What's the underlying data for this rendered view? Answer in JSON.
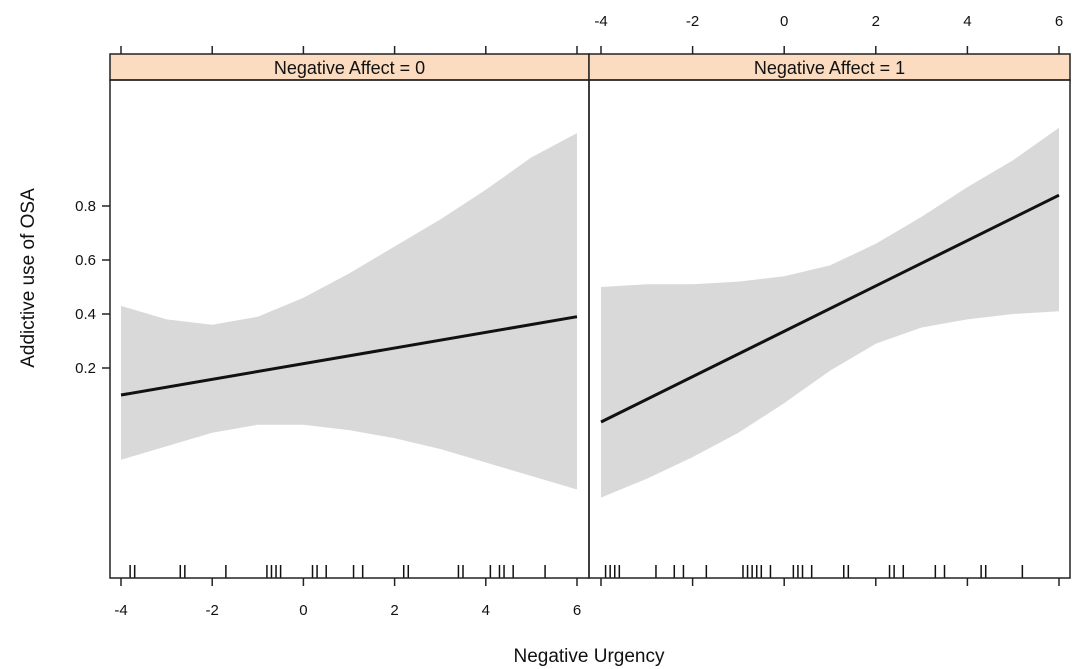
{
  "chart_data": {
    "type": "line",
    "xlabel": "Negative Urgency",
    "ylabel": "Addictive use of OSA",
    "xlim": [
      -4,
      6
    ],
    "ylim": [
      -0.25,
      1.1
    ],
    "x_ticks": [
      -4,
      -2,
      0,
      2,
      4,
      6
    ],
    "x_tick_labels": [
      "-4",
      "-2",
      "0",
      "2",
      "4",
      "6"
    ],
    "y_ticks": [
      0.2,
      0.4,
      0.6,
      0.8
    ],
    "y_tick_labels": [
      "0.2",
      "0.4",
      "0.6",
      "0.8"
    ],
    "strip_fill": "#fbdcc0",
    "band_color": "#d9d9d9",
    "line_color": "#111111",
    "panels": [
      {
        "strip_label": "Negative  Affect = 0",
        "fit": {
          "x": [
            -4,
            6
          ],
          "y": [
            0.1,
            0.39
          ]
        },
        "band_x": [
          -4,
          -3,
          -2,
          -1,
          0,
          1,
          2,
          3,
          4,
          5,
          6
        ],
        "band_upper": [
          0.43,
          0.38,
          0.36,
          0.39,
          0.46,
          0.55,
          0.65,
          0.75,
          0.86,
          0.98,
          1.07
        ],
        "band_lower": [
          -0.14,
          -0.09,
          -0.04,
          -0.01,
          -0.01,
          -0.03,
          -0.06,
          -0.1,
          -0.15,
          -0.2,
          -0.25
        ],
        "rug": [
          -3.8,
          -3.7,
          -2.7,
          -2.6,
          -1.7,
          -0.8,
          -0.7,
          -0.6,
          -0.5,
          0.2,
          0.3,
          0.5,
          1.1,
          1.3,
          2.2,
          2.3,
          3.4,
          3.5,
          4.1,
          4.3,
          4.4,
          4.6,
          5.3
        ]
      },
      {
        "strip_label": "Negative  Affect = 1",
        "fit": {
          "x": [
            -4,
            6
          ],
          "y": [
            0.0,
            0.84
          ]
        },
        "band_x": [
          -4,
          -3,
          -2,
          -1,
          0,
          1,
          2,
          3,
          4,
          5,
          6
        ],
        "band_upper": [
          0.5,
          0.51,
          0.51,
          0.52,
          0.54,
          0.58,
          0.66,
          0.76,
          0.87,
          0.97,
          1.09
        ],
        "band_lower": [
          -0.28,
          -0.21,
          -0.13,
          -0.04,
          0.07,
          0.19,
          0.29,
          0.35,
          0.38,
          0.4,
          0.41
        ],
        "rug": [
          -3.9,
          -3.8,
          -3.7,
          -3.6,
          -2.8,
          -2.4,
          -2.2,
          -1.7,
          -0.9,
          -0.8,
          -0.7,
          -0.6,
          -0.5,
          -0.3,
          0.2,
          0.3,
          0.4,
          0.6,
          1.3,
          1.4,
          2.3,
          2.4,
          2.6,
          3.3,
          3.5,
          4.3,
          4.4,
          5.2
        ]
      }
    ]
  }
}
